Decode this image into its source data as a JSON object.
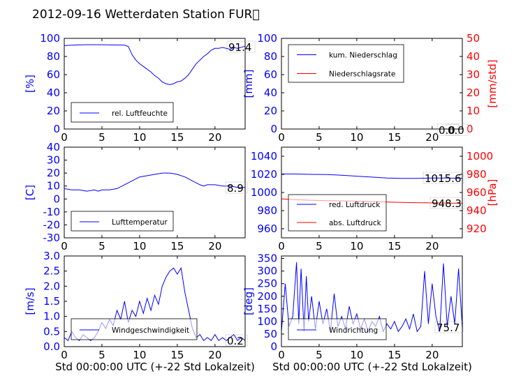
{
  "title": "2012-09-16 Wetterdaten Station FUR\u0000",
  "xlabel": "Std 00:00:00 UTC (+-22 Std Lokalzeit)",
  "chart_data": [
    {
      "id": "humidity",
      "type": "line",
      "xlim": [
        0,
        24
      ],
      "xticks": [
        0,
        5,
        10,
        15,
        20
      ],
      "ylim": [
        0,
        100
      ],
      "yticks": [
        0,
        20,
        40,
        60,
        80,
        100
      ],
      "ylabel": "[%]",
      "ytick_color": "#0000ff",
      "legend_position": "lower-left",
      "value_label": "91.4",
      "series": [
        {
          "name": "rel. Luftfeuchte",
          "color": "#0000ff",
          "x": [
            0,
            1,
            2,
            3,
            4,
            5,
            6,
            7,
            8,
            8.5,
            9,
            9.5,
            10,
            10.5,
            11,
            11.5,
            12,
            12.5,
            13,
            13.5,
            14,
            14.5,
            15,
            15.5,
            16,
            16.5,
            17,
            17.5,
            18,
            18.5,
            19,
            19.5,
            20,
            20.5,
            21,
            21.5,
            22,
            22.5,
            23,
            24
          ],
          "y": [
            92,
            92.5,
            92.8,
            93,
            93,
            93,
            92.8,
            92.7,
            92.5,
            91,
            82,
            76,
            72,
            69,
            66,
            63,
            59,
            56,
            52,
            50,
            49,
            50,
            52,
            53,
            56,
            60,
            66,
            72,
            76,
            80,
            83,
            87,
            89,
            89,
            90,
            89,
            88,
            90,
            89,
            91.4
          ]
        }
      ]
    },
    {
      "id": "precipitation",
      "type": "line",
      "xlim": [
        0,
        24
      ],
      "xticks": [
        0,
        5,
        10,
        15,
        20
      ],
      "ylim": [
        0,
        100
      ],
      "yticks": [
        0,
        20,
        40,
        60,
        80,
        100
      ],
      "ylabel": "[mm]",
      "ytick_color": "#0000ff",
      "y2lim": [
        0,
        50
      ],
      "y2ticks": [
        0,
        10,
        20,
        30,
        40,
        50
      ],
      "y2label": "[mm/std]",
      "y2tick_color": "#ff0000",
      "legend_position": "upper-left",
      "value_label": "0.0",
      "value_label2": "0.0",
      "series": [
        {
          "name": "kum. Niederschlag",
          "color": "#0000ff",
          "x": [
            0,
            24
          ],
          "y": [
            0,
            0
          ]
        },
        {
          "name": "Niederschlagsrate",
          "color": "#ff0000",
          "axis": "y2",
          "x": [
            0,
            24
          ],
          "y": [
            0,
            0
          ]
        }
      ]
    },
    {
      "id": "temperature",
      "type": "line",
      "xlim": [
        0,
        24
      ],
      "xticks": [
        0,
        5,
        10,
        15,
        20
      ],
      "ylim": [
        -30,
        40
      ],
      "yticks": [
        -30,
        -20,
        -10,
        0,
        10,
        20,
        30,
        40
      ],
      "ylabel": "[C]",
      "ytick_color": "#0000ff",
      "legend_position": "lower-left",
      "value_label": "8.9",
      "series": [
        {
          "name": "Lufttemperatur",
          "color": "#0000ff",
          "x": [
            0,
            1,
            2,
            3,
            4,
            4.5,
            5,
            6,
            7,
            8,
            9,
            10,
            11,
            12,
            13,
            14,
            15,
            16,
            17,
            18,
            18.5,
            19,
            20,
            21,
            22,
            23,
            24
          ],
          "y": [
            8,
            7,
            7,
            6,
            7,
            6,
            7,
            7,
            8,
            11,
            14,
            17,
            18,
            19,
            20,
            20,
            19,
            17,
            14,
            11,
            10,
            11,
            11,
            10,
            10,
            9,
            8.9
          ]
        }
      ]
    },
    {
      "id": "pressure",
      "type": "line",
      "xlim": [
        0,
        24
      ],
      "xticks": [
        0,
        5,
        10,
        15,
        20
      ],
      "ylim": [
        950,
        1050
      ],
      "yticks": [
        960,
        980,
        1000,
        1020,
        1040
      ],
      "ylabel": "",
      "ytick_color": "#0000ff",
      "y2lim": [
        910,
        1010
      ],
      "y2ticks": [
        920,
        940,
        960,
        980,
        1000
      ],
      "y2label": "[hPa]",
      "y2tick_color": "#ff0000",
      "legend_position": "lower-left",
      "value_label": "1015.6",
      "value_label2": "948.3",
      "series": [
        {
          "name": "red. Luftdruck",
          "color": "#0000ff",
          "x": [
            0,
            2,
            4,
            6,
            8,
            10,
            12,
            14,
            16,
            18,
            20,
            22,
            24
          ],
          "y": [
            1020.5,
            1020.4,
            1020,
            1019.8,
            1019,
            1018,
            1017,
            1016,
            1015.5,
            1015.6,
            1016,
            1016,
            1015.6
          ]
        },
        {
          "name": "abs. Luftdruck",
          "color": "#ff0000",
          "axis": "y2",
          "x": [
            0,
            2,
            4,
            6,
            8,
            10,
            12,
            14,
            16,
            18,
            20,
            22,
            24
          ],
          "y": [
            953,
            952,
            951.5,
            951,
            950.8,
            950.5,
            950,
            949.5,
            949,
            948.8,
            948.5,
            948.3,
            948.3
          ]
        }
      ]
    },
    {
      "id": "windspeed",
      "type": "line",
      "xlim": [
        0,
        24
      ],
      "xticks": [
        0,
        5,
        10,
        15,
        20
      ],
      "ylim": [
        0,
        3.0
      ],
      "yticks": [
        "0.0",
        "0.5",
        "1.0",
        "1.5",
        "2.0",
        "2.5",
        "3.0"
      ],
      "ylabel": "[m/s]",
      "ytick_color": "#0000ff",
      "legend_position": "lower-center",
      "value_label": "0.2",
      "series": [
        {
          "name": "Windgeschwindigkeit",
          "color": "#0000ff",
          "x": [
            0,
            0.5,
            1,
            1.5,
            2,
            2.5,
            3,
            3.5,
            4,
            4.5,
            5,
            5.5,
            6,
            6.5,
            7,
            7.5,
            8,
            8.5,
            9,
            9.5,
            10,
            10.5,
            11,
            11.5,
            12,
            12.5,
            13,
            13.5,
            14,
            14.5,
            15,
            15.5,
            16,
            16.5,
            17,
            17.5,
            18,
            18.5,
            19,
            19.5,
            20,
            20.5,
            21,
            21.5,
            22,
            22.5,
            23,
            23.5,
            24
          ],
          "y": [
            0.3,
            0.2,
            0.5,
            0.3,
            0.2,
            0.4,
            0.3,
            0.2,
            0.3,
            0.5,
            0.8,
            0.6,
            0.9,
            0.7,
            1.2,
            0.9,
            1.5,
            0.8,
            1.2,
            1.0,
            1.5,
            1.1,
            1.6,
            1.2,
            1.7,
            1.4,
            2.0,
            2.3,
            2.5,
            2.6,
            2.4,
            2.6,
            1.8,
            1.2,
            0.6,
            0.3,
            0.4,
            0.2,
            0.3,
            0.2,
            0.4,
            0.2,
            0.3,
            0.2,
            0.3,
            0.4,
            0.2,
            0.3,
            0.2
          ]
        }
      ]
    },
    {
      "id": "winddirection",
      "type": "line",
      "xlim": [
        0,
        24
      ],
      "xticks": [
        0,
        5,
        10,
        15,
        20
      ],
      "ylim": [
        0,
        360
      ],
      "yticks": [
        0,
        50,
        100,
        150,
        200,
        250,
        300,
        350
      ],
      "ylabel": "[deg]",
      "ytick_color": "#0000ff",
      "legend_position": "lower-left",
      "value_label": "75.7",
      "series": [
        {
          "name": "Windrichtung",
          "color": "#0000ff",
          "x": [
            0,
            0.5,
            1,
            1.5,
            2,
            2.3,
            2.6,
            3,
            3.3,
            3.6,
            4,
            4.5,
            5,
            5.5,
            6,
            6.5,
            7,
            7.5,
            8,
            8.5,
            9,
            9.5,
            10,
            10.5,
            11,
            11.5,
            12,
            12.5,
            13,
            13.5,
            14,
            14.5,
            15,
            15.5,
            16,
            16.5,
            17,
            17.5,
            18,
            18.5,
            19,
            19.5,
            20,
            20.5,
            21,
            21.5,
            22,
            22.5,
            23,
            23.5,
            24
          ],
          "y": [
            60,
            250,
            80,
            120,
            335,
            90,
            310,
            60,
            280,
            100,
            200,
            70,
            180,
            90,
            150,
            60,
            210,
            80,
            120,
            70,
            160,
            90,
            130,
            70,
            110,
            60,
            100,
            80,
            120,
            60,
            90,
            70,
            100,
            60,
            80,
            110,
            70,
            130,
            60,
            80,
            300,
            90,
            250,
            120,
            60,
            330,
            80,
            200,
            90,
            310,
            75.7
          ]
        }
      ]
    }
  ]
}
